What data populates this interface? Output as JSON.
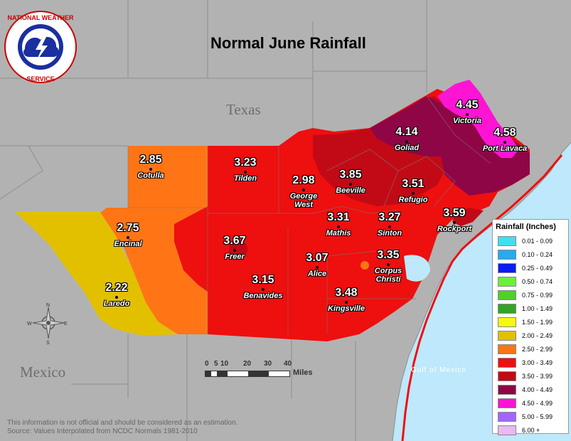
{
  "map": {
    "title": "Normal June Rainfall",
    "region_labels": [
      "Texas",
      "Mexico"
    ],
    "water_label": "Gulf of Mexico",
    "logo_text": "NATIONAL WEATHER SERVICE",
    "compass": {
      "n": "N",
      "s": "S",
      "e": "E",
      "w": "W"
    },
    "scale": {
      "ticks": [
        "0",
        "5",
        "10",
        "20",
        "30",
        "40"
      ],
      "unit": "Miles"
    },
    "disclaimer": "This information is not official and should be considered as an estimation.",
    "source": "Source: Values Interpolated from NCDC Normals 1981-2010"
  },
  "stations": [
    {
      "name": "Cotulla",
      "value": "2.85"
    },
    {
      "name": "Tilden",
      "value": "3.23"
    },
    {
      "name": "George West",
      "value": "2.98"
    },
    {
      "name": "Beeville",
      "value": "3.85"
    },
    {
      "name": "Goliad",
      "value": "4.14"
    },
    {
      "name": "Victoria",
      "value": "4.45"
    },
    {
      "name": "Port Lavaca",
      "value": "4.58"
    },
    {
      "name": "Refugio",
      "value": "3.51"
    },
    {
      "name": "Rockport",
      "value": "3.59"
    },
    {
      "name": "Encinal",
      "value": "2.75"
    },
    {
      "name": "Freer",
      "value": "3.67"
    },
    {
      "name": "Mathis",
      "value": "3.31"
    },
    {
      "name": "Sinton",
      "value": "3.27"
    },
    {
      "name": "Alice",
      "value": "3.07"
    },
    {
      "name": "Corpus Christi",
      "value": "3.35"
    },
    {
      "name": "Benavides",
      "value": "3.15"
    },
    {
      "name": "Laredo",
      "value": "2.22"
    },
    {
      "name": "Kingsville",
      "value": "3.48"
    }
  ],
  "legend": {
    "title": "Rainfall (Inches)",
    "items": [
      {
        "label": "0.01 - 0.09",
        "color": "#3ee0f5"
      },
      {
        "label": "0.10 - 0.24",
        "color": "#27aaf0"
      },
      {
        "label": "0.25 - 0.49",
        "color": "#0a1ef0"
      },
      {
        "label": "0.50 - 0.74",
        "color": "#6af03a"
      },
      {
        "label": "0.75 - 0.99",
        "color": "#4fd126"
      },
      {
        "label": "1.00 - 1.49",
        "color": "#34a326"
      },
      {
        "label": "1.50 - 1.99",
        "color": "#f7f714"
      },
      {
        "label": "2.00 - 2.49",
        "color": "#e2c000"
      },
      {
        "label": "2.50 - 2.99",
        "color": "#ff7516"
      },
      {
        "label": "3.00 - 3.49",
        "color": "#ee0f0f"
      },
      {
        "label": "3.50 - 3.99",
        "color": "#c20a16"
      },
      {
        "label": "4.00 - 4.49",
        "color": "#8f0646"
      },
      {
        "label": "4.50 - 4.99",
        "color": "#ff14d4"
      },
      {
        "label": "5.00 - 5.99",
        "color": "#a266ff"
      },
      {
        "label": "6.00 +",
        "color": "#eab8f2"
      }
    ]
  }
}
